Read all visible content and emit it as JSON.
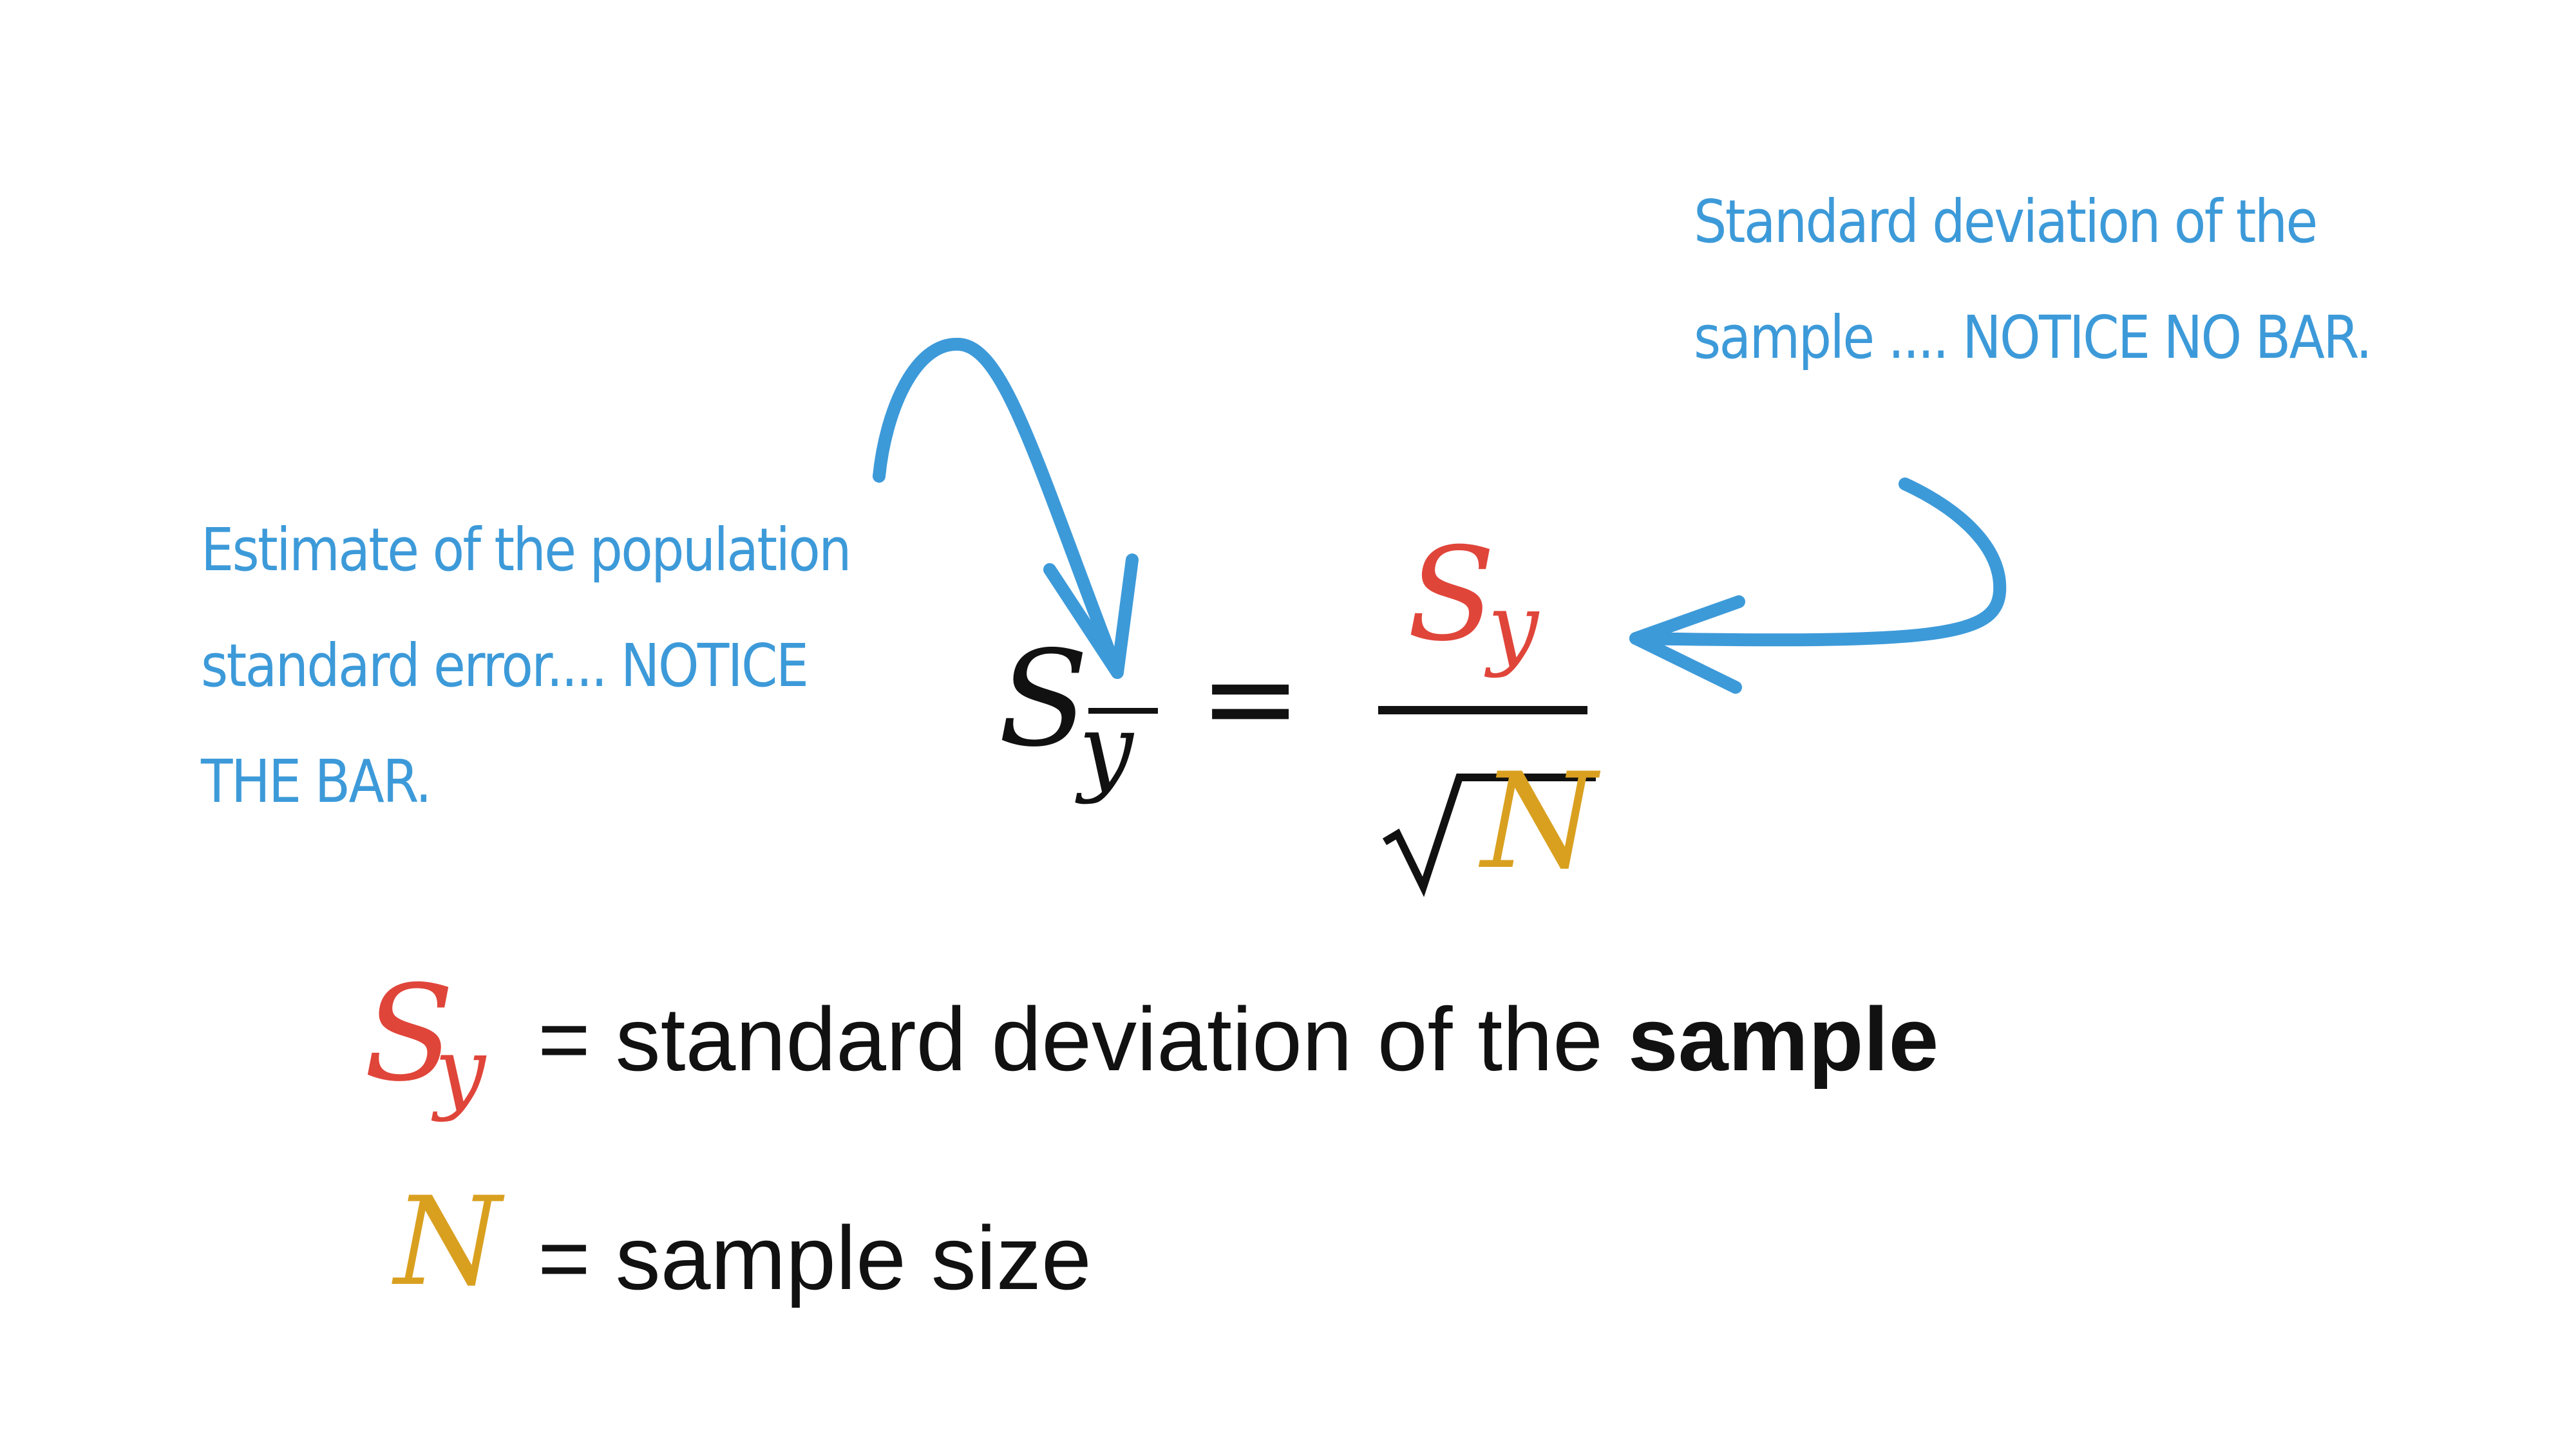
{
  "annotations": {
    "left": {
      "lines": [
        "Estimate of the population",
        "standard error.... NOTICE",
        "THE BAR."
      ]
    },
    "right": {
      "lines": [
        "Standard deviation of the",
        "sample .... NOTICE NO BAR."
      ]
    }
  },
  "formula": {
    "lhs_symbol": "S",
    "lhs_subscript": "y",
    "equals": "=",
    "numerator_symbol": "S",
    "numerator_subscript": "y",
    "denominator_symbol": "N"
  },
  "legend": {
    "sy": {
      "symbol": "S",
      "subscript": "y",
      "text": "= standard deviation of the ",
      "emphasis": "sample"
    },
    "n": {
      "symbol": "N",
      "text": "= sample size"
    }
  },
  "colors": {
    "annotation": "#3d9ad9",
    "sample_sd": "#e0453a",
    "sample_size": "#d9a020",
    "ink": "#111111"
  }
}
